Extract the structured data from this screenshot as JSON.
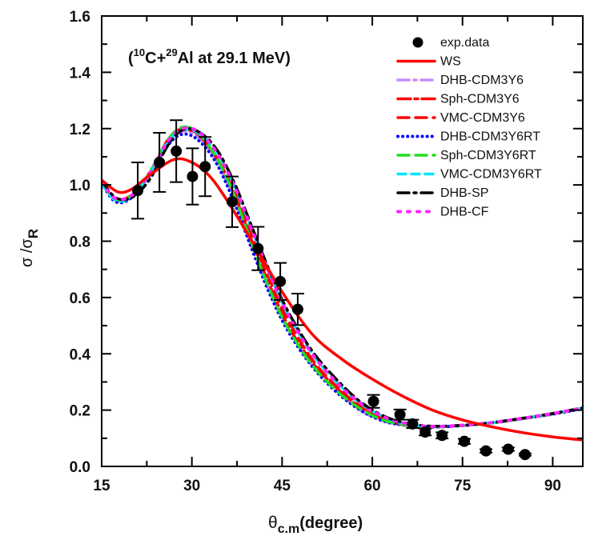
{
  "chart_data": {
    "type": "line",
    "title": "",
    "annotation": {
      "open": "(",
      "sup1": "10",
      "part1": "C+",
      "sup2": "29",
      "part2": "Al at 29.1 MeV)"
    },
    "xlabel": {
      "main": "θ",
      "sub": "c.m",
      "rest": "(degree)"
    },
    "ylabel": {
      "main1": "σ",
      "slash": " /",
      "main2": "σ",
      "sub": "R"
    },
    "xlim": [
      15,
      95
    ],
    "ylim": [
      0.0,
      1.6
    ],
    "xticks": [
      15,
      30,
      45,
      60,
      75,
      90
    ],
    "xtick_labels": [
      "15",
      "30",
      "45",
      "60",
      "75",
      "90"
    ],
    "xminor": [
      22.5,
      37.5,
      52.5,
      67.5,
      82.5
    ],
    "yticks": [
      0.0,
      0.2,
      0.4,
      0.6,
      0.8,
      1.0,
      1.2,
      1.4,
      1.6
    ],
    "ytick_labels": [
      "0.0",
      "0.2",
      "0.4",
      "0.6",
      "0.8",
      "1.0",
      "1.2",
      "1.4",
      "1.6"
    ],
    "yminor": [
      0.1,
      0.3,
      0.5,
      0.7,
      0.9,
      1.1,
      1.3,
      1.5
    ],
    "grid": false,
    "legend_position": "top-right",
    "experimental": {
      "name": "exp.data",
      "color": "#000000",
      "x": [
        21.0,
        24.6,
        27.4,
        30.1,
        32.2,
        36.7,
        41.0,
        44.7,
        47.6,
        60.2,
        64.6,
        66.7,
        68.8,
        71.6,
        75.3,
        78.9,
        82.6,
        85.4
      ],
      "y": [
        0.98,
        1.08,
        1.12,
        1.03,
        1.065,
        0.94,
        0.774,
        0.657,
        0.558,
        0.231,
        0.184,
        0.151,
        0.122,
        0.11,
        0.089,
        0.055,
        0.061,
        0.042
      ],
      "yerr": [
        0.1,
        0.105,
        0.11,
        0.1,
        0.105,
        0.09,
        0.077,
        0.066,
        0.056,
        0.023,
        0.018,
        0.015,
        0.012,
        0.011,
        0.009,
        0.006,
        0.006,
        0.004
      ]
    },
    "series": [
      {
        "name": "WS",
        "color": "#ff0000",
        "dash": "solid",
        "x": [
          15,
          17.7,
          20,
          23,
          27,
          30,
          33,
          36,
          40,
          45,
          50,
          55,
          60,
          65,
          70,
          75,
          80,
          85,
          90,
          95
        ],
        "y": [
          1.017,
          0.975,
          0.985,
          1.035,
          1.09,
          1.08,
          1.03,
          0.94,
          0.8,
          0.62,
          0.47,
          0.38,
          0.31,
          0.25,
          0.2,
          0.165,
          0.14,
          0.12,
          0.105,
          0.094
        ]
      },
      {
        "name": "DHB-CDM3Y6",
        "color": "#cc88ff",
        "dash": "dashdot",
        "x": [
          15,
          17.3,
          20,
          23,
          26,
          28.4,
          31,
          34,
          37,
          40,
          43,
          46,
          50,
          54,
          58,
          62,
          66,
          70,
          75,
          80,
          85,
          90,
          95
        ],
        "y": [
          1.01,
          0.945,
          0.96,
          1.04,
          1.15,
          1.19,
          1.17,
          1.09,
          0.95,
          0.78,
          0.62,
          0.49,
          0.36,
          0.27,
          0.2,
          0.16,
          0.145,
          0.14,
          0.145,
          0.155,
          0.17,
          0.185,
          0.205
        ]
      },
      {
        "name": "Sph-CDM3Y6",
        "color": "#ff0000",
        "dash": "dashdot2",
        "x": [
          15,
          17.3,
          20,
          23,
          26,
          28.4,
          31,
          34,
          37,
          40,
          43,
          46,
          50,
          54,
          58,
          62,
          66,
          70,
          75,
          80,
          85,
          90,
          95
        ],
        "y": [
          1.01,
          0.95,
          0.965,
          1.045,
          1.16,
          1.2,
          1.18,
          1.1,
          0.97,
          0.8,
          0.64,
          0.5,
          0.37,
          0.28,
          0.21,
          0.165,
          0.145,
          0.14,
          0.145,
          0.155,
          0.17,
          0.187,
          0.207
        ]
      },
      {
        "name": "VMC-CDM3Y6",
        "color": "#ff0000",
        "dash": "dash",
        "x": [
          15,
          17.3,
          20,
          23,
          26,
          28.4,
          31,
          34,
          37,
          40,
          43,
          46,
          50,
          54,
          58,
          62,
          66,
          70,
          75,
          80,
          85,
          90,
          95
        ],
        "y": [
          1.01,
          0.948,
          0.962,
          1.042,
          1.155,
          1.195,
          1.18,
          1.1,
          0.98,
          0.82,
          0.66,
          0.52,
          0.38,
          0.285,
          0.215,
          0.17,
          0.148,
          0.141,
          0.145,
          0.155,
          0.17,
          0.187,
          0.207
        ]
      },
      {
        "name": "DHB-CDM3Y6RT",
        "color": "#0000ff",
        "dash": "dot",
        "x": [
          15,
          17.3,
          20,
          23,
          26,
          28.4,
          31,
          34,
          37,
          40,
          43,
          46,
          50,
          54,
          58,
          62,
          66,
          70,
          75,
          80,
          85,
          90,
          95
        ],
        "y": [
          1.005,
          0.94,
          0.955,
          1.035,
          1.14,
          1.18,
          1.16,
          1.08,
          0.94,
          0.77,
          0.61,
          0.48,
          0.355,
          0.265,
          0.2,
          0.16,
          0.145,
          0.14,
          0.145,
          0.155,
          0.17,
          0.186,
          0.205
        ]
      },
      {
        "name": "Sph-CDM3Y6RT",
        "color": "#22dd22",
        "dash": "dash",
        "x": [
          15,
          17.3,
          20,
          23,
          26,
          28.4,
          31,
          34,
          37,
          40,
          43,
          46,
          50,
          54,
          58,
          62,
          66,
          70,
          75,
          80,
          85,
          90,
          95
        ],
        "y": [
          1.005,
          0.948,
          0.963,
          1.045,
          1.16,
          1.205,
          1.185,
          1.1,
          0.965,
          0.79,
          0.625,
          0.49,
          0.36,
          0.27,
          0.205,
          0.163,
          0.146,
          0.141,
          0.145,
          0.155,
          0.17,
          0.187,
          0.207
        ]
      },
      {
        "name": "VMC-CDM3Y6RT",
        "color": "#00e5ff",
        "dash": "dash2",
        "x": [
          15,
          17.3,
          20,
          23,
          26,
          28.4,
          31,
          34,
          37,
          40,
          43,
          46,
          50,
          54,
          58,
          62,
          66,
          70,
          75,
          80,
          85,
          90,
          95
        ],
        "y": [
          1.005,
          0.945,
          0.958,
          1.038,
          1.15,
          1.195,
          1.185,
          1.12,
          1.0,
          0.84,
          0.68,
          0.54,
          0.4,
          0.3,
          0.225,
          0.175,
          0.15,
          0.142,
          0.146,
          0.156,
          0.171,
          0.188,
          0.208
        ]
      },
      {
        "name": "DHB-SP",
        "color": "#000000",
        "dash": "dashdot",
        "x": [
          15,
          17.3,
          20,
          23,
          26,
          28.4,
          31,
          34,
          37,
          40,
          43,
          46,
          50,
          54,
          58,
          62,
          66,
          70,
          75,
          80,
          85,
          90,
          95
        ],
        "y": [
          1.015,
          0.955,
          0.955,
          1.02,
          1.14,
          1.195,
          1.19,
          1.13,
          1.01,
          0.85,
          0.69,
          0.55,
          0.41,
          0.31,
          0.23,
          0.178,
          0.152,
          0.143,
          0.146,
          0.156,
          0.171,
          0.188,
          0.208
        ]
      },
      {
        "name": "DHB-CF",
        "color": "#ff22ff",
        "dash": "dot2",
        "x": [
          15,
          17.3,
          20,
          23,
          26,
          28.4,
          31,
          34,
          37,
          40,
          43,
          46,
          50,
          54,
          58,
          62,
          66,
          70,
          75,
          80,
          85,
          90,
          95
        ],
        "y": [
          1.01,
          0.952,
          0.963,
          1.04,
          1.155,
          1.2,
          1.19,
          1.12,
          1.0,
          0.84,
          0.68,
          0.54,
          0.4,
          0.3,
          0.225,
          0.175,
          0.15,
          0.142,
          0.146,
          0.156,
          0.171,
          0.188,
          0.208
        ]
      }
    ]
  }
}
